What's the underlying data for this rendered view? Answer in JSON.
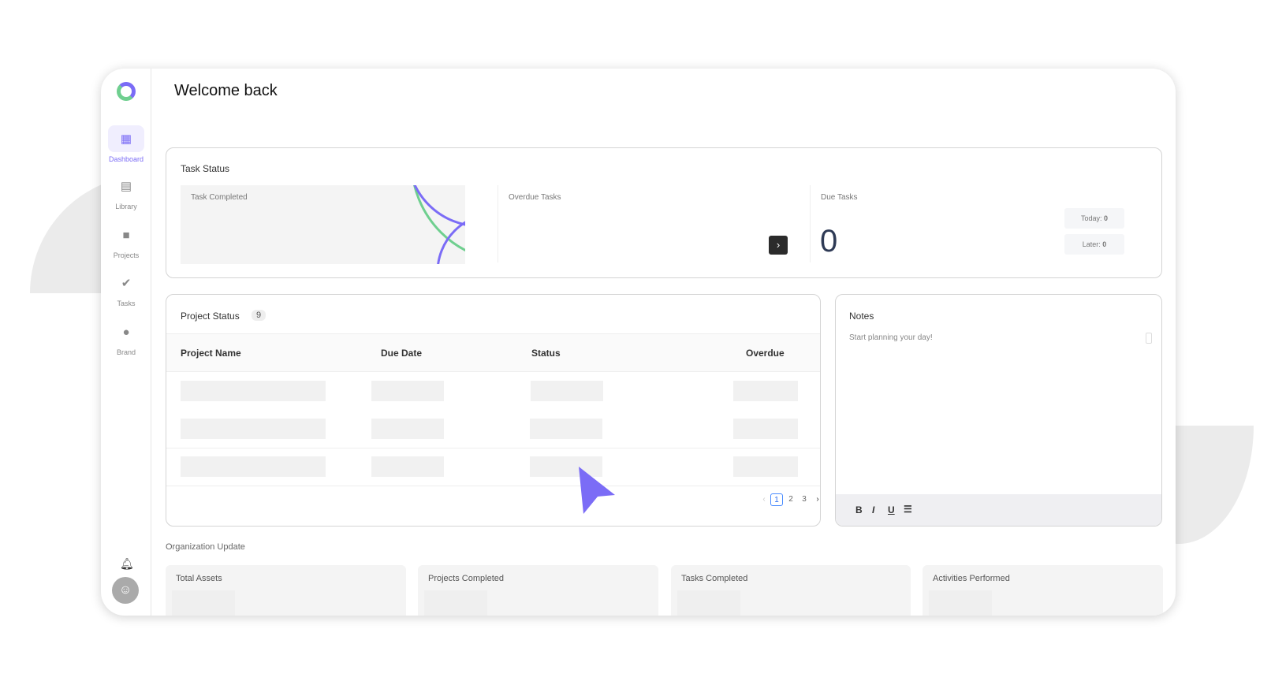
{
  "sidebar": {
    "items": [
      {
        "label": "Dashboard",
        "icon": "dashboard-icon",
        "active": true
      },
      {
        "label": "Library",
        "icon": "library-icon"
      },
      {
        "label": "Projects",
        "icon": "folder-icon"
      },
      {
        "label": "Tasks",
        "icon": "check-circle-icon"
      },
      {
        "label": "Brand",
        "icon": "palette-icon"
      }
    ]
  },
  "header": {
    "title": "Welcome back"
  },
  "task_status": {
    "title": "Task Status",
    "completed_label": "Task Completed",
    "overdue_label": "Overdue Tasks",
    "due_label": "Due Tasks",
    "due_count": "0",
    "today_label": "Today:",
    "today_value": "0",
    "later_label": "Later:",
    "later_value": "0"
  },
  "project_status": {
    "title": "Project Status",
    "count": "9",
    "columns": [
      "Project Name",
      "Due Date",
      "Status",
      "Overdue"
    ],
    "pages": [
      "1",
      "2",
      "3"
    ],
    "current_page": "1"
  },
  "notes": {
    "title": "Notes",
    "placeholder": "Start planning your day!",
    "toolbar": [
      "B",
      "I",
      "U"
    ]
  },
  "org": {
    "title": "Organization Update",
    "cards": [
      "Total Assets",
      "Projects Completed",
      "Tasks Completed",
      "Activities Performed"
    ]
  },
  "colors": {
    "accent": "#7b6cf6",
    "green": "#6fcf8f"
  }
}
